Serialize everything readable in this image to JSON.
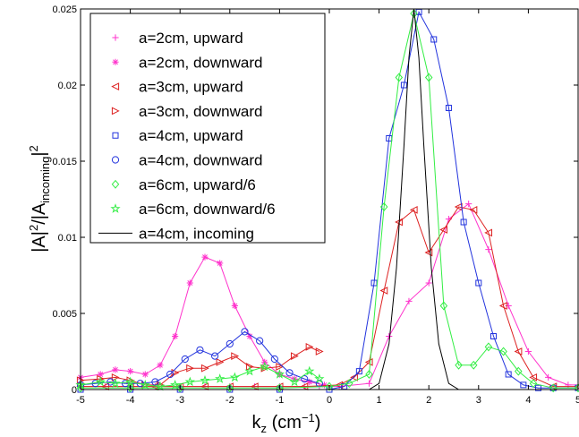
{
  "chart_data": {
    "type": "line",
    "title": "",
    "xlabel": "k",
    "xlabel_sub": "z",
    "xlabel_unit": " (cm",
    "xlabel_unit_sup": "−1",
    "xlabel_close": ")",
    "ylabel_parts": [
      "|A|",
      "2",
      "/|A",
      "incoming",
      "|",
      "2"
    ],
    "xlim": [
      -5,
      5
    ],
    "ylim": [
      0,
      0.025
    ],
    "xticks": [
      "-5",
      "-4",
      "-3",
      "-2",
      "-1",
      "0",
      "1",
      "2",
      "3",
      "4",
      "5"
    ],
    "yticks": [
      "0",
      "0.005",
      "0.01",
      "0.015",
      "0.02",
      "0.025"
    ],
    "grid": false,
    "legend_position": "top-left",
    "series": [
      {
        "name": "a=2cm, upward",
        "color": "#ff33cc",
        "marker": "plus",
        "x": [
          -5,
          -4.5,
          -4,
          -3.5,
          -3,
          -2.5,
          -2,
          -1.5,
          -1,
          -0.5,
          -0.2,
          0.2,
          0.8,
          1.2,
          1.6,
          2.0,
          2.4,
          2.8,
          3.2,
          3.6,
          4.0,
          4.4,
          4.8,
          5.0
        ],
        "y": [
          0.0002,
          0.0002,
          0.0002,
          0.0002,
          0.0002,
          0.0002,
          0.0002,
          0.0002,
          0.0002,
          0.0002,
          0.0002,
          0.0002,
          0.0004,
          0.0035,
          0.0058,
          0.007,
          0.0112,
          0.0122,
          0.0092,
          0.0055,
          0.0025,
          0.0008,
          0.0003,
          0.0003
        ]
      },
      {
        "name": "a=2cm, downward",
        "color": "#ff33cc",
        "marker": "star",
        "x": [
          -5,
          -4.6,
          -4.3,
          -4.0,
          -3.7,
          -3.4,
          -3.1,
          -2.8,
          -2.5,
          -2.2,
          -1.9,
          -1.6,
          -1.3,
          -1.0,
          -0.7,
          -0.4,
          -0.1
        ],
        "y": [
          0.0008,
          0.001,
          0.0013,
          0.0012,
          0.001,
          0.0016,
          0.0035,
          0.007,
          0.0087,
          0.0083,
          0.0055,
          0.0035,
          0.0018,
          0.001,
          0.0007,
          0.0005,
          0.0003
        ]
      },
      {
        "name": "a=3cm, upward",
        "color": "#dd2222",
        "marker": "tri-left",
        "x": [
          -5,
          -4.5,
          -4,
          -3.5,
          -3,
          -2.5,
          -2,
          -1.5,
          -1,
          -0.5,
          0.2,
          0.5,
          0.8,
          1.1,
          1.4,
          1.7,
          2.0,
          2.3,
          2.6,
          2.9,
          3.2,
          3.5,
          3.8,
          4.1,
          4.5,
          5.0
        ],
        "y": [
          0.0002,
          0.0002,
          0.0002,
          0.0002,
          0.0002,
          0.0002,
          0.0002,
          0.0002,
          0.0002,
          0.0002,
          0.0003,
          0.0008,
          0.0018,
          0.0065,
          0.011,
          0.0118,
          0.009,
          0.0105,
          0.012,
          0.0118,
          0.0103,
          0.0055,
          0.0025,
          0.0008,
          0.0002,
          0.0002
        ]
      },
      {
        "name": "a=3cm, downward",
        "color": "#dd2222",
        "marker": "tri-right",
        "x": [
          -5,
          -4.6,
          -4.3,
          -4.0,
          -3.7,
          -3.4,
          -3.1,
          -2.8,
          -2.5,
          -2.2,
          -1.9,
          -1.6,
          -1.3,
          -1.0,
          -0.7,
          -0.4,
          -0.2
        ],
        "y": [
          0.0006,
          0.0007,
          0.0008,
          0.0006,
          0.0003,
          0.0003,
          0.0011,
          0.0014,
          0.0014,
          0.0018,
          0.0022,
          0.0015,
          0.0014,
          0.0015,
          0.0022,
          0.0028,
          0.0025
        ]
      },
      {
        "name": "a=4cm, upward",
        "color": "#2233dd",
        "marker": "square",
        "x": [
          -5,
          -4,
          -3,
          -2,
          -1,
          0,
          0.3,
          0.6,
          0.9,
          1.2,
          1.5,
          1.8,
          2.1,
          2.4,
          2.7,
          3.0,
          3.3,
          3.6,
          3.9,
          4.2,
          4.5,
          5.0
        ],
        "y": [
          0,
          0,
          0,
          0,
          0,
          0,
          0.0002,
          0.0012,
          0.007,
          0.0165,
          0.02,
          0.0248,
          0.023,
          0.0185,
          0.011,
          0.007,
          0.0035,
          0.001,
          0.0003,
          0.0001,
          0.0001,
          0.0001
        ]
      },
      {
        "name": "a=4cm, downward",
        "color": "#2233dd",
        "marker": "circle",
        "x": [
          -5,
          -4.7,
          -4.4,
          -4.1,
          -3.8,
          -3.5,
          -3.2,
          -2.9,
          -2.6,
          -2.3,
          -2.0,
          -1.7,
          -1.4,
          -1.1,
          -0.8,
          -0.5,
          -0.2
        ],
        "y": [
          0.0003,
          0.0004,
          0.0005,
          0.0004,
          0.0004,
          0.0005,
          0.001,
          0.002,
          0.0026,
          0.0022,
          0.003,
          0.0038,
          0.0032,
          0.002,
          0.0011,
          0.0007,
          0.0004
        ]
      },
      {
        "name": "a=6cm, upward/6",
        "color": "#33ee44",
        "marker": "diamond",
        "x": [
          -5,
          -4,
          -3,
          -2,
          -1,
          0,
          0.4,
          0.8,
          1.1,
          1.4,
          1.7,
          2.0,
          2.3,
          2.6,
          2.9,
          3.2,
          3.5,
          3.8,
          4.1,
          4.5,
          5.0
        ],
        "y": [
          0.0001,
          0.0001,
          0.0001,
          0.0001,
          0.0001,
          0.0002,
          0.0004,
          0.001,
          0.012,
          0.0205,
          0.0247,
          0.0205,
          0.0055,
          0.0016,
          0.0016,
          0.0028,
          0.0025,
          0.0012,
          0.0004,
          0.0001,
          0.0001
        ]
      },
      {
        "name": "a=6cm, downward/6",
        "color": "#33ee44",
        "marker": "pentagram",
        "x": [
          -5,
          -4.6,
          -4.3,
          -4.0,
          -3.7,
          -3.4,
          -3.1,
          -2.8,
          -2.5,
          -2.2,
          -1.9,
          -1.6,
          -1.3,
          -1.0,
          -0.7,
          -0.4,
          -0.2
        ],
        "y": [
          0.0003,
          0.0005,
          0.0004,
          0.0005,
          0.0003,
          0.0002,
          0.0003,
          0.0005,
          0.0006,
          0.0007,
          0.0008,
          0.0012,
          0.0015,
          0.001,
          0.0005,
          0.0012,
          0.0007
        ]
      },
      {
        "name": "a=4cm, incoming",
        "color": "#000000",
        "marker": "none",
        "x": [
          -5,
          -4,
          -3,
          -2,
          -1,
          0,
          0.8,
          1.0,
          1.2,
          1.35,
          1.5,
          1.6,
          1.7,
          1.8,
          1.9,
          2.05,
          2.2,
          2.4,
          2.6,
          3,
          4,
          5
        ],
        "y": [
          0,
          0,
          0,
          0,
          0,
          0,
          0,
          0.0004,
          0.003,
          0.008,
          0.016,
          0.0218,
          0.025,
          0.0218,
          0.016,
          0.008,
          0.003,
          0.0004,
          0,
          0,
          0,
          0
        ]
      }
    ]
  }
}
